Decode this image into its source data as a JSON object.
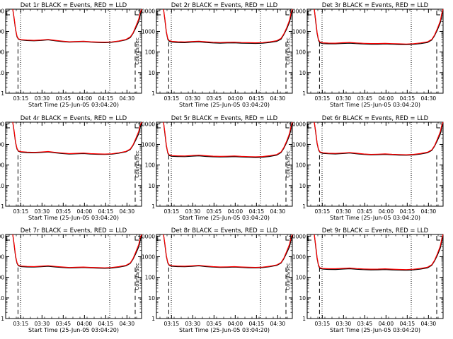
{
  "figure": {
    "ylabel": "Counts/sec",
    "xlabel": "Start Time (25-Jun-05 03:04:20)",
    "xticks": [
      "03:15",
      "03:30",
      "03:45",
      "04:00",
      "04:15",
      "04:30"
    ],
    "yticks": [
      "1",
      "10",
      "100",
      "1000",
      "10000"
    ],
    "colors": {
      "events": "#000000",
      "lld": "#ff0000"
    }
  },
  "chart_data": [
    {
      "type": "line",
      "title": "Det 1r BLACK = Events, RED = LLD",
      "x_unit": "minutes after 03:04:20",
      "xlim": [
        0,
        96
      ],
      "ylim": [
        1,
        12000
      ],
      "yscale": "log",
      "x": [
        5,
        6,
        7,
        8,
        9,
        11,
        15,
        20,
        25,
        30,
        35,
        40,
        45,
        50,
        55,
        60,
        65,
        70,
        75,
        80,
        85,
        88,
        90,
        92,
        94,
        95,
        96
      ],
      "series": [
        {
          "name": "Events",
          "values": [
            12000,
            4000,
            1200,
            550,
            420,
            380,
            360,
            350,
            365,
            390,
            350,
            320,
            300,
            310,
            320,
            300,
            290,
            285,
            295,
            330,
            390,
            500,
            800,
            1500,
            3000,
            6000,
            12000
          ]
        },
        {
          "name": "LLD",
          "values": [
            12000,
            4500,
            1300,
            600,
            440,
            400,
            380,
            370,
            385,
            410,
            370,
            340,
            315,
            325,
            335,
            315,
            305,
            300,
            310,
            345,
            410,
            540,
            850,
            1800,
            4000,
            8000,
            12000
          ]
        }
      ],
      "vlines": [
        10.5,
        73.5
      ],
      "dashed_vlines": [
        8.7,
        91.5
      ]
    },
    {
      "type": "line",
      "title": "Det 2r BLACK = Events, RED = LLD",
      "x_unit": "minutes after 03:04:20",
      "xlim": [
        0,
        96
      ],
      "ylim": [
        1,
        12000
      ],
      "yscale": "log",
      "x": [
        5,
        6,
        7,
        8,
        9,
        11,
        15,
        20,
        25,
        30,
        35,
        40,
        45,
        50,
        55,
        60,
        65,
        70,
        75,
        80,
        85,
        88,
        90,
        92,
        94,
        95,
        96
      ],
      "series": [
        {
          "name": "Events",
          "values": [
            12000,
            3500,
            900,
            420,
            330,
            300,
            290,
            285,
            300,
            310,
            290,
            275,
            270,
            275,
            280,
            270,
            265,
            260,
            268,
            290,
            330,
            420,
            700,
            1300,
            2800,
            5500,
            12000
          ]
        },
        {
          "name": "LLD",
          "values": [
            12000,
            4000,
            1000,
            460,
            360,
            330,
            315,
            310,
            325,
            335,
            315,
            298,
            290,
            295,
            302,
            290,
            285,
            280,
            288,
            312,
            355,
            460,
            760,
            1500,
            3500,
            7500,
            12000
          ]
        }
      ],
      "vlines": [
        10.5,
        73.5
      ],
      "dashed_vlines": [
        8.7,
        91.5
      ]
    },
    {
      "type": "line",
      "title": "Det 3r BLACK = Events, RED = LLD",
      "x_unit": "minutes after 03:04:20",
      "xlim": [
        0,
        96
      ],
      "ylim": [
        1,
        12000
      ],
      "yscale": "log",
      "x": [
        5,
        6,
        7,
        8,
        9,
        11,
        15,
        20,
        25,
        30,
        35,
        40,
        45,
        50,
        55,
        60,
        65,
        70,
        75,
        80,
        85,
        88,
        90,
        92,
        94,
        95,
        96
      ],
      "series": [
        {
          "name": "Events",
          "values": [
            12000,
            3000,
            800,
            360,
            280,
            255,
            250,
            250,
            260,
            270,
            255,
            245,
            240,
            240,
            245,
            238,
            232,
            228,
            235,
            255,
            290,
            380,
            620,
            1200,
            2600,
            5200,
            12000
          ]
        },
        {
          "name": "LLD",
          "values": [
            12000,
            3600,
            900,
            395,
            305,
            280,
            272,
            270,
            282,
            292,
            276,
            265,
            258,
            258,
            264,
            256,
            250,
            246,
            254,
            275,
            312,
            410,
            680,
            1400,
            3200,
            7000,
            12000
          ]
        }
      ],
      "vlines": [
        10.5,
        73.5
      ],
      "dashed_vlines": [
        8.7,
        91.5
      ]
    },
    {
      "type": "line",
      "title": "Det 4r BLACK = Events, RED = LLD",
      "x_unit": "minutes after 03:04:20",
      "xlim": [
        0,
        96
      ],
      "ylim": [
        1,
        12000
      ],
      "yscale": "log",
      "x": [
        5,
        6,
        7,
        8,
        9,
        11,
        15,
        20,
        25,
        30,
        35,
        40,
        45,
        50,
        55,
        60,
        65,
        70,
        75,
        80,
        85,
        88,
        90,
        92,
        94,
        95,
        96
      ],
      "series": [
        {
          "name": "Events",
          "values": [
            12000,
            4000,
            1200,
            600,
            460,
            420,
            400,
            390,
            405,
            430,
            390,
            360,
            340,
            350,
            360,
            340,
            330,
            325,
            335,
            375,
            440,
            560,
            900,
            1700,
            3300,
            6500,
            12000
          ]
        },
        {
          "name": "LLD",
          "values": [
            12000,
            4500,
            1300,
            650,
            485,
            445,
            425,
            412,
            428,
            455,
            412,
            380,
            358,
            368,
            380,
            358,
            348,
            342,
            353,
            395,
            462,
            600,
            960,
            2000,
            4300,
            8500,
            12000
          ]
        }
      ],
      "vlines": [
        10.5,
        73.5
      ],
      "dashed_vlines": [
        8.7,
        91.5
      ]
    },
    {
      "type": "line",
      "title": "Det 5r BLACK = Events, RED = LLD",
      "x_unit": "minutes after 03:04:20",
      "xlim": [
        0,
        96
      ],
      "ylim": [
        1,
        12000
      ],
      "yscale": "log",
      "x": [
        5,
        6,
        7,
        8,
        9,
        11,
        15,
        20,
        25,
        30,
        35,
        40,
        45,
        50,
        55,
        60,
        65,
        70,
        75,
        80,
        85,
        88,
        90,
        92,
        94,
        95,
        96
      ],
      "series": [
        {
          "name": "Events",
          "values": [
            12000,
            3200,
            850,
            380,
            290,
            265,
            258,
            255,
            268,
            280,
            262,
            250,
            245,
            248,
            255,
            245,
            238,
            232,
            240,
            262,
            300,
            400,
            650,
            1250,
            2700,
            5400,
            12000
          ]
        },
        {
          "name": "LLD",
          "values": [
            12000,
            3800,
            950,
            410,
            312,
            286,
            278,
            275,
            290,
            302,
            283,
            270,
            264,
            267,
            275,
            264,
            257,
            250,
            259,
            282,
            322,
            430,
            710,
            1450,
            3400,
            7200,
            12000
          ]
        }
      ],
      "vlines": [
        10.5,
        73.5
      ],
      "dashed_vlines": [
        8.7,
        91.5
      ]
    },
    {
      "type": "line",
      "title": "Det 6r BLACK = Events, RED = LLD",
      "x_unit": "minutes after 03:04:20",
      "xlim": [
        0,
        96
      ],
      "ylim": [
        1,
        12000
      ],
      "yscale": "log",
      "x": [
        5,
        6,
        7,
        8,
        9,
        11,
        15,
        20,
        25,
        30,
        35,
        40,
        45,
        50,
        55,
        60,
        65,
        70,
        75,
        80,
        85,
        88,
        90,
        92,
        94,
        95,
        96
      ],
      "series": [
        {
          "name": "Events",
          "values": [
            12000,
            3800,
            1100,
            540,
            410,
            370,
            352,
            345,
            360,
            380,
            350,
            325,
            310,
            318,
            328,
            312,
            304,
            298,
            308,
            340,
            395,
            510,
            820,
            1550,
            3100,
            6200,
            12000
          ]
        },
        {
          "name": "LLD",
          "values": [
            12000,
            4300,
            1200,
            580,
            435,
            392,
            373,
            366,
            382,
            403,
            371,
            345,
            328,
            337,
            348,
            331,
            322,
            316,
            327,
            360,
            418,
            545,
            880,
            1850,
            4100,
            8200,
            12000
          ]
        }
      ],
      "vlines": [
        10.5,
        73.5
      ],
      "dashed_vlines": [
        8.7,
        91.5
      ]
    },
    {
      "type": "line",
      "title": "Det 7r BLACK = Events, RED = LLD",
      "x_unit": "minutes after 03:04:20",
      "xlim": [
        0,
        96
      ],
      "ylim": [
        1,
        12000
      ],
      "yscale": "log",
      "x": [
        5,
        6,
        7,
        8,
        9,
        11,
        15,
        20,
        25,
        30,
        35,
        40,
        45,
        50,
        55,
        60,
        65,
        70,
        75,
        80,
        85,
        88,
        90,
        92,
        94,
        95,
        96
      ],
      "series": [
        {
          "name": "Events",
          "values": [
            12000,
            3600,
            1000,
            480,
            360,
            330,
            318,
            312,
            326,
            345,
            318,
            298,
            285,
            290,
            298,
            286,
            278,
            273,
            282,
            310,
            360,
            470,
            760,
            1450,
            3000,
            6000,
            12000
          ]
        },
        {
          "name": "LLD",
          "values": [
            12000,
            4100,
            1100,
            520,
            385,
            352,
            338,
            332,
            347,
            367,
            338,
            317,
            302,
            308,
            316,
            304,
            295,
            290,
            300,
            330,
            382,
            500,
            820,
            1750,
            3900,
            8000,
            12000
          ]
        }
      ],
      "vlines": [
        10.5,
        73.5
      ],
      "dashed_vlines": [
        8.7,
        91.5
      ]
    },
    {
      "type": "line",
      "title": "Det 8r BLACK = Events, RED = LLD",
      "x_unit": "minutes after 03:04:20",
      "xlim": [
        0,
        96
      ],
      "ylim": [
        1,
        12000
      ],
      "yscale": "log",
      "x": [
        5,
        6,
        7,
        8,
        9,
        11,
        15,
        20,
        25,
        30,
        35,
        40,
        45,
        50,
        55,
        60,
        65,
        70,
        75,
        80,
        85,
        88,
        90,
        92,
        94,
        95,
        96
      ],
      "series": [
        {
          "name": "Events",
          "values": [
            12000,
            3700,
            1050,
            500,
            380,
            345,
            332,
            326,
            340,
            360,
            332,
            312,
            300,
            305,
            312,
            300,
            292,
            287,
            296,
            325,
            378,
            490,
            790,
            1500,
            3050,
            6100,
            12000
          ]
        },
        {
          "name": "LLD",
          "values": [
            12000,
            4200,
            1150,
            540,
            403,
            367,
            352,
            346,
            361,
            382,
            352,
            331,
            318,
            323,
            331,
            318,
            310,
            304,
            314,
            345,
            400,
            520,
            850,
            1800,
            4000,
            8100,
            12000
          ]
        }
      ],
      "vlines": [
        10.5,
        73.5
      ],
      "dashed_vlines": [
        8.7,
        91.5
      ]
    },
    {
      "type": "line",
      "title": "Det 9r BLACK = Events, RED = LLD",
      "x_unit": "minutes after 03:04:20",
      "xlim": [
        0,
        96
      ],
      "ylim": [
        1,
        12000
      ],
      "yscale": "log",
      "x": [
        5,
        6,
        7,
        8,
        9,
        11,
        15,
        20,
        25,
        30,
        35,
        40,
        45,
        50,
        55,
        60,
        65,
        70,
        75,
        80,
        85,
        88,
        90,
        92,
        94,
        95,
        96
      ],
      "series": [
        {
          "name": "Events",
          "values": [
            12000,
            3100,
            820,
            360,
            270,
            250,
            242,
            240,
            250,
            262,
            246,
            236,
            230,
            232,
            238,
            230,
            224,
            220,
            228,
            250,
            288,
            380,
            620,
            1200,
            2600,
            5200,
            12000
          ]
        },
        {
          "name": "LLD",
          "values": [
            12000,
            3700,
            920,
            392,
            292,
            270,
            262,
            260,
            271,
            283,
            266,
            255,
            248,
            251,
            258,
            249,
            242,
            238,
            247,
            270,
            310,
            410,
            680,
            1400,
            3300,
            7000,
            12000
          ]
        }
      ],
      "vlines": [
        10.5,
        73.5
      ],
      "dashed_vlines": [
        8.7,
        91.5
      ]
    }
  ]
}
